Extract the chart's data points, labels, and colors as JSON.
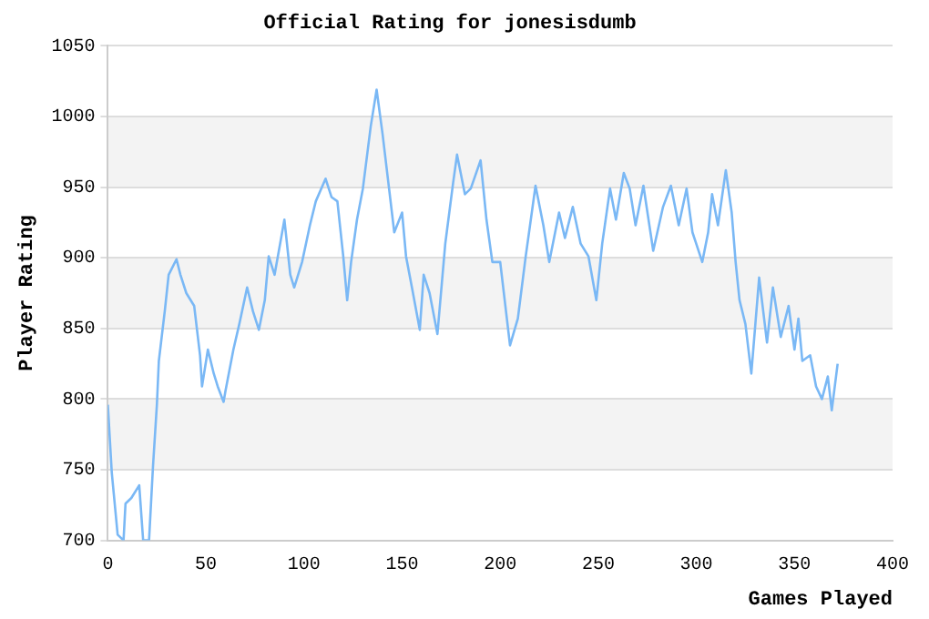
{
  "chart_data": {
    "type": "line",
    "title": "Official Rating for jonesisdumb",
    "xlabel": "Games Played",
    "ylabel": "Player Rating",
    "x": [
      0,
      2,
      5,
      8,
      9,
      12,
      16,
      18,
      21,
      23,
      25,
      26,
      29,
      31,
      35,
      37,
      40,
      44,
      47,
      48,
      51,
      54,
      56,
      59,
      60,
      64,
      67,
      71,
      74,
      77,
      80,
      82,
      85,
      90,
      93,
      95,
      99,
      103,
      106,
      111,
      114,
      117,
      120,
      122,
      124,
      127,
      130,
      134,
      137,
      140,
      143,
      146,
      150,
      152,
      155,
      159,
      161,
      164,
      168,
      172,
      176,
      178,
      182,
      185,
      190,
      193,
      196,
      200,
      205,
      209,
      213,
      218,
      222,
      225,
      230,
      233,
      237,
      241,
      245,
      249,
      252,
      256,
      259,
      263,
      266,
      269,
      273,
      278,
      283,
      287,
      291,
      295,
      298,
      303,
      306,
      308,
      311,
      315,
      318,
      320,
      322,
      325,
      328,
      332,
      336,
      339,
      343,
      347,
      350,
      352,
      354,
      358,
      361,
      364,
      367,
      369,
      372
    ],
    "series": [
      {
        "color": "#7ab8f5",
        "values": [
          796,
          748,
          704,
          700,
          726,
          730,
          739,
          700,
          700,
          752,
          796,
          827,
          862,
          888,
          899,
          888,
          875,
          866,
          831,
          809,
          835,
          818,
          809,
          798,
          806,
          835,
          853,
          879,
          862,
          849,
          870,
          901,
          888,
          927,
          888,
          879,
          897,
          923,
          940,
          956,
          943,
          940,
          901,
          870,
          897,
          927,
          949,
          993,
          1019,
          988,
          953,
          918,
          932,
          901,
          879,
          849,
          888,
          875,
          846,
          910,
          953,
          973,
          945,
          949,
          969,
          927,
          897,
          897,
          838,
          857,
          901,
          951,
          923,
          897,
          932,
          914,
          936,
          910,
          901,
          870,
          910,
          949,
          927,
          960,
          949,
          923,
          951,
          905,
          936,
          951,
          923,
          949,
          918,
          897,
          918,
          945,
          923,
          962,
          932,
          897,
          870,
          853,
          818,
          886,
          840,
          879,
          844,
          866,
          835,
          857,
          827,
          831,
          809,
          800,
          816,
          792,
          825
        ]
      }
    ],
    "xlim": [
      0,
      400
    ],
    "xticks": [
      0,
      50,
      100,
      150,
      200,
      250,
      300,
      350,
      400
    ],
    "ylim": [
      700,
      1050
    ],
    "yticks": [
      700,
      750,
      800,
      850,
      900,
      950,
      1000,
      1050
    ],
    "grid": "y",
    "legend": false,
    "marker": "none",
    "line_style": "solid"
  }
}
